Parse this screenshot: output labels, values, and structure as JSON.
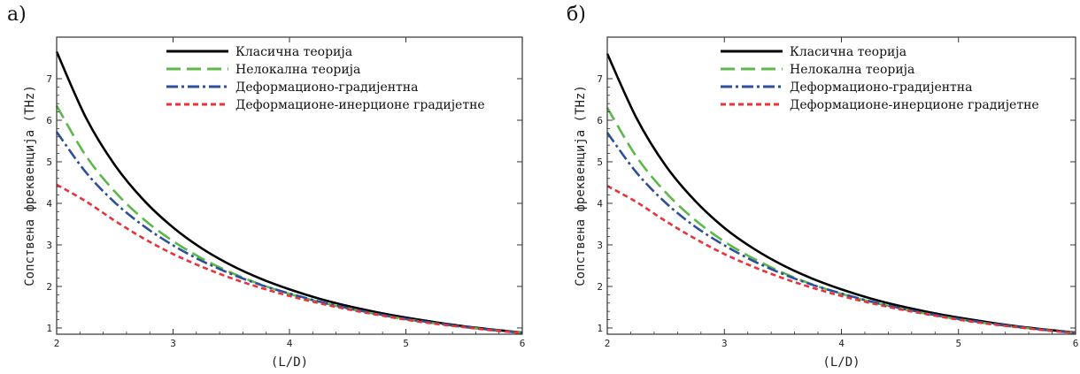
{
  "chart_data": [
    {
      "panel_label": "а)",
      "type": "line",
      "xlabel": "(L/D)",
      "ylabel": "Сопствена фреквенција (THz)",
      "xlim": [
        2,
        6
      ],
      "ylim": [
        0.85,
        8.0
      ],
      "xticks": [
        2,
        3,
        4,
        5,
        6
      ],
      "yticks": [
        1,
        2,
        3,
        4,
        5,
        6,
        7
      ],
      "legend_position": "top-right",
      "grid": false,
      "x": [
        2.0,
        2.25,
        2.5,
        2.75,
        3.0,
        3.25,
        3.5,
        3.75,
        4.0,
        4.25,
        4.5,
        4.75,
        5.0,
        5.25,
        5.5,
        5.75,
        6.0
      ],
      "series": [
        {
          "name": "Класична теорија",
          "color": "#000000",
          "dash": "",
          "width": 2.6,
          "values": [
            7.65,
            6.07,
            4.92,
            4.07,
            3.42,
            2.91,
            2.51,
            2.19,
            1.93,
            1.71,
            1.53,
            1.38,
            1.25,
            1.14,
            1.04,
            0.96,
            0.89
          ]
        },
        {
          "name": "Нелокална теорија",
          "color": "#5cb84a",
          "dash": "16,7",
          "width": 2.6,
          "values": [
            6.35,
            5.15,
            4.28,
            3.61,
            3.09,
            2.67,
            2.33,
            2.05,
            1.82,
            1.63,
            1.47,
            1.33,
            1.21,
            1.11,
            1.02,
            0.95,
            0.88
          ]
        },
        {
          "name": "Деформационо-градијентна",
          "color": "#2e4f9c",
          "dash": "13,4,3,4",
          "width": 2.6,
          "values": [
            5.72,
            4.75,
            4.02,
            3.45,
            2.99,
            2.61,
            2.3,
            2.04,
            1.83,
            1.64,
            1.48,
            1.34,
            1.22,
            1.12,
            1.03,
            0.95,
            0.88
          ]
        },
        {
          "name": "Деформационе-инерционе градијетне",
          "color": "#e8333a",
          "dash": "6,4",
          "width": 2.6,
          "values": [
            4.45,
            4.05,
            3.58,
            3.15,
            2.78,
            2.47,
            2.2,
            1.97,
            1.77,
            1.6,
            1.45,
            1.32,
            1.2,
            1.1,
            1.02,
            0.94,
            0.88
          ]
        }
      ]
    },
    {
      "panel_label": "б)",
      "type": "line",
      "xlabel": "(L/D)",
      "ylabel": "Сопствена фреквенција (THz)",
      "xlim": [
        2,
        6
      ],
      "ylim": [
        0.85,
        8.0
      ],
      "xticks": [
        2,
        3,
        4,
        5,
        6
      ],
      "yticks": [
        1,
        2,
        3,
        4,
        5,
        6,
        7
      ],
      "legend_position": "top-right",
      "grid": false,
      "x": [
        2.0,
        2.25,
        2.5,
        2.75,
        3.0,
        3.25,
        3.5,
        3.75,
        4.0,
        4.25,
        4.5,
        4.75,
        5.0,
        5.25,
        5.5,
        5.75,
        6.0
      ],
      "series": [
        {
          "name": "Класична теорија",
          "color": "#000000",
          "dash": "",
          "width": 2.6,
          "values": [
            7.6,
            6.05,
            4.9,
            4.06,
            3.41,
            2.91,
            2.51,
            2.19,
            1.93,
            1.71,
            1.53,
            1.38,
            1.25,
            1.14,
            1.04,
            0.96,
            0.89
          ]
        },
        {
          "name": "Нелокална теорија",
          "color": "#5cb84a",
          "dash": "16,7",
          "width": 2.6,
          "values": [
            6.3,
            5.12,
            4.26,
            3.6,
            3.08,
            2.67,
            2.33,
            2.05,
            1.82,
            1.63,
            1.47,
            1.33,
            1.21,
            1.11,
            1.02,
            0.95,
            0.88
          ]
        },
        {
          "name": "Деформационо-градијентна",
          "color": "#2e4f9c",
          "dash": "13,4,3,4",
          "width": 2.6,
          "values": [
            5.7,
            4.74,
            4.01,
            3.44,
            2.99,
            2.61,
            2.3,
            2.04,
            1.83,
            1.64,
            1.48,
            1.34,
            1.22,
            1.12,
            1.03,
            0.95,
            0.88
          ]
        },
        {
          "name": "Деформационе-инерционе градијетне",
          "color": "#e8333a",
          "dash": "6,4",
          "width": 2.6,
          "values": [
            4.42,
            4.03,
            3.57,
            3.15,
            2.78,
            2.47,
            2.2,
            1.97,
            1.77,
            1.6,
            1.45,
            1.32,
            1.2,
            1.1,
            1.02,
            0.94,
            0.88
          ]
        }
      ]
    }
  ]
}
